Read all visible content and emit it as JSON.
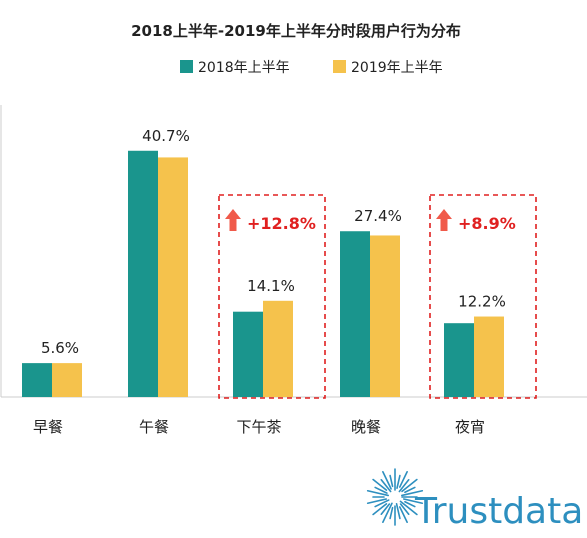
{
  "chart_data": {
    "type": "bar",
    "title": "2018上半年-2019年上半年分时段用户行为分布",
    "categories": [
      "早餐",
      "午餐",
      "下午茶",
      "晚餐",
      "夜宵"
    ],
    "series": [
      {
        "name": "2018年上半年",
        "values": [
          5.6,
          40.7,
          14.1,
          27.4,
          12.2
        ]
      },
      {
        "name": "2019年上半年",
        "values": [
          5.6,
          39.6,
          15.9,
          26.7,
          13.3
        ]
      }
    ],
    "data_labels": [
      "5.6%",
      "40.7%",
      "14.1%",
      "27.4%",
      "12.2%"
    ],
    "ylim": [
      0,
      48
    ],
    "grid": false,
    "legend_position": "top",
    "callouts": [
      {
        "category": "下午茶",
        "text": "+12.8%"
      },
      {
        "category": "夜宵",
        "text": "+8.9%"
      }
    ]
  },
  "colors": {
    "series_2018": "#1a958d",
    "series_2019": "#f5c24c",
    "callout": "#e02020",
    "brand": "#2d8fbf"
  },
  "brand": {
    "name": "Trustdata",
    "icon": "starburst-logo-icon"
  }
}
